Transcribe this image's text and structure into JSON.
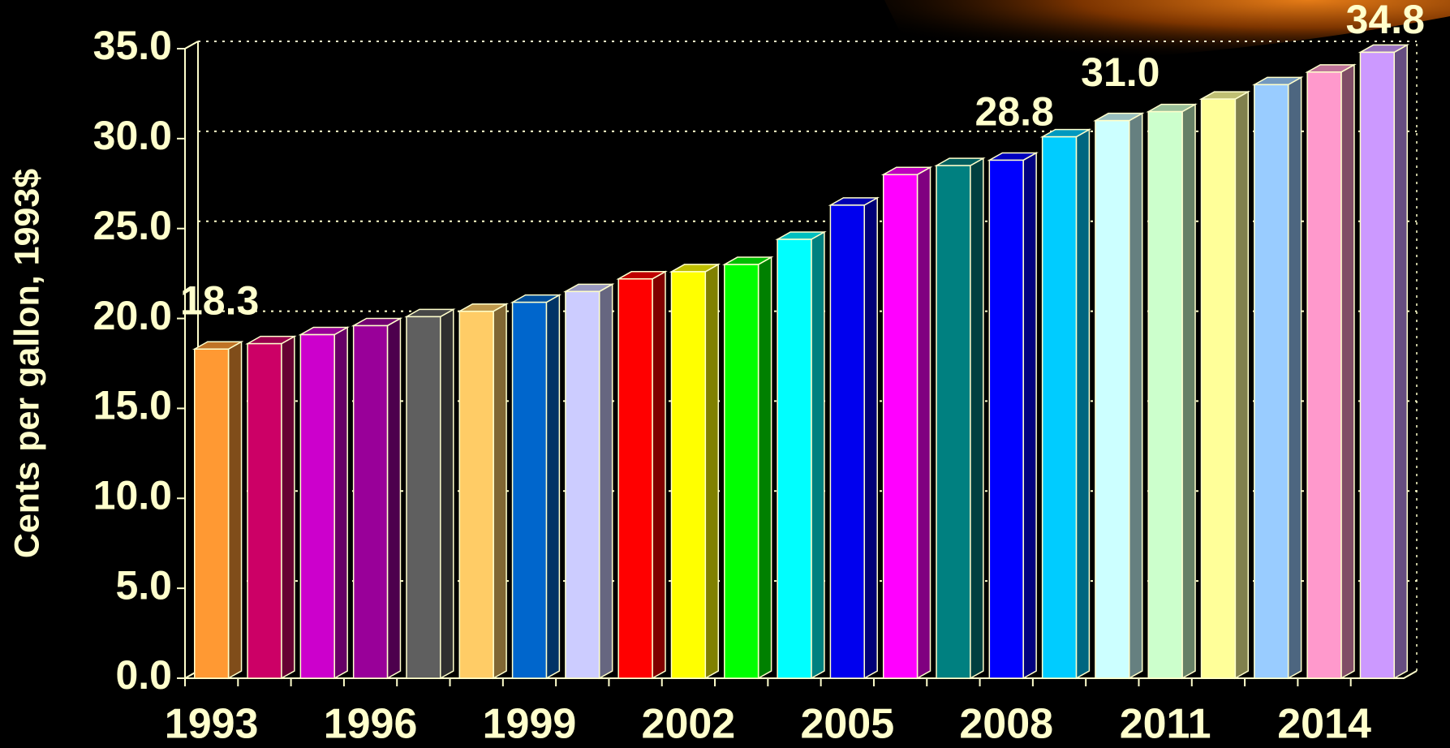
{
  "chart_data": {
    "type": "bar3d",
    "ylabel": "Cents per gallon, 1993$",
    "categories": [
      "1993",
      null,
      null,
      "1996",
      null,
      null,
      "1999",
      null,
      null,
      "2002",
      null,
      null,
      "2005",
      null,
      null,
      "2008",
      null,
      null,
      "2011",
      null,
      null,
      "2014",
      null
    ],
    "values": [
      18.3,
      18.6,
      19.1,
      19.6,
      20.1,
      20.4,
      20.9,
      21.5,
      22.2,
      22.6,
      23.0,
      24.4,
      26.3,
      28.0,
      28.5,
      28.8,
      30.1,
      31.0,
      31.5,
      32.2,
      33.0,
      33.7,
      34.8
    ],
    "value_labels": [
      "18.3",
      null,
      null,
      null,
      null,
      null,
      null,
      null,
      null,
      null,
      null,
      null,
      null,
      null,
      null,
      "28.8",
      null,
      "31.0",
      null,
      null,
      null,
      null,
      "34.8"
    ],
    "colors": [
      "#ff9933",
      "#cc0066",
      "#cc00cc",
      "#990099",
      "#5f5f5f",
      "#ffcc66",
      "#0066cc",
      "#ccccff",
      "#ff0000",
      "#ffff00",
      "#00ff00",
      "#00ffff",
      "#0000ee",
      "#ff00ff",
      "#008080",
      "#0000ff",
      "#00ccff",
      "#ccffff",
      "#ccffcc",
      "#ffff99",
      "#99ccff",
      "#ff99cc",
      "#cc99ff"
    ],
    "ylim": [
      0,
      35
    ],
    "yticks": [
      {
        "value": 0,
        "label": "0.0"
      },
      {
        "value": 5,
        "label": "5.0"
      },
      {
        "value": 10,
        "label": "10.0"
      },
      {
        "value": 15,
        "label": "15.0"
      },
      {
        "value": 20,
        "label": "20.0"
      },
      {
        "value": 25,
        "label": "25.0"
      },
      {
        "value": 30,
        "label": "30.0"
      },
      {
        "value": 35,
        "label": "35.0"
      }
    ],
    "grid": true
  }
}
